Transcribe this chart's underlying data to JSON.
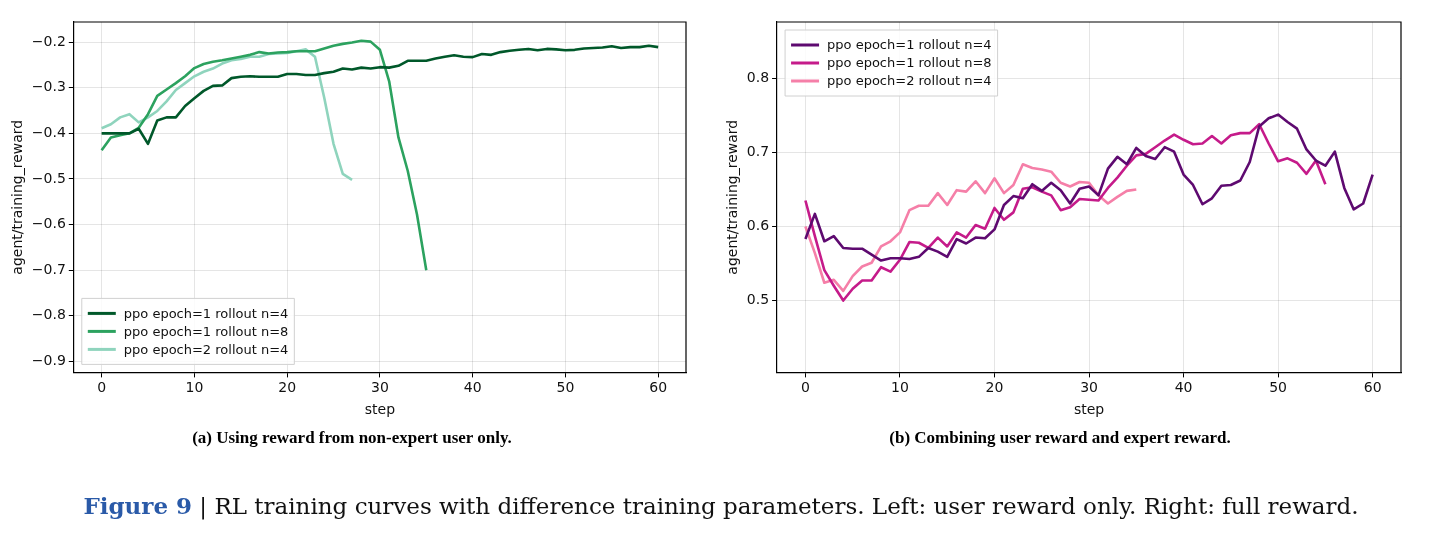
{
  "chart_data": [
    {
      "type": "line",
      "xlabel": "step",
      "ylabel": "agent/training_reward",
      "legend": "bottom left",
      "grid": true,
      "line_style": "solid",
      "annotations": [
        "(a) Using reward from non-expert user only.",
        "Figure 9 | RL training curves with difference training parameters. Left: user reward only. Right: full reward."
      ],
      "xlim": [
        -3,
        63
      ],
      "xticks": [
        0,
        10,
        20,
        30,
        40,
        50,
        60
      ],
      "ylim": [
        -0.924,
        -0.156
      ],
      "yticks": [
        {
          "value": -0.9,
          "label": "−0.9"
        },
        {
          "value": -0.8,
          "label": "−0.8"
        },
        {
          "value": -0.7,
          "label": "−0.7"
        },
        {
          "value": -0.6,
          "label": "−0.6"
        },
        {
          "value": -0.5,
          "label": "−0.5"
        },
        {
          "value": -0.4,
          "label": "−0.4"
        },
        {
          "value": -0.3,
          "label": "−0.3"
        },
        {
          "value": -0.2,
          "label": "−0.2"
        }
      ],
      "series": [
        {
          "name": "ppo epoch=1 rollout n=4",
          "color": "#00582a",
          "x": [
            0,
            1,
            2,
            3,
            4,
            5,
            6,
            7,
            8,
            9,
            10,
            11,
            12,
            13,
            14,
            15,
            16,
            17,
            18,
            19,
            20,
            21,
            22,
            23,
            24,
            25,
            26,
            27,
            28,
            29,
            30,
            31,
            32,
            33,
            34,
            35,
            36,
            37,
            38,
            39,
            40,
            41,
            42,
            43,
            44,
            45,
            46,
            47,
            48,
            49,
            50,
            51,
            52,
            53,
            54,
            55,
            56,
            57,
            58,
            59,
            60
          ],
          "values": [
            -0.4,
            -0.4,
            -0.4,
            -0.4,
            -0.39,
            -0.423,
            -0.372,
            -0.365,
            -0.365,
            -0.34,
            -0.323,
            -0.307,
            -0.296,
            -0.295,
            -0.279,
            -0.276,
            -0.275,
            -0.276,
            -0.276,
            -0.276,
            -0.27,
            -0.27,
            -0.272,
            -0.272,
            -0.268,
            -0.265,
            -0.258,
            -0.26,
            -0.256,
            -0.258,
            -0.255,
            -0.256,
            -0.252,
            -0.241,
            -0.241,
            -0.241,
            -0.236,
            -0.232,
            -0.229,
            -0.232,
            -0.233,
            -0.226,
            -0.228,
            -0.222,
            -0.219,
            -0.217,
            -0.215,
            -0.218,
            -0.215,
            -0.216,
            -0.218,
            -0.217,
            -0.214,
            -0.213,
            -0.212,
            -0.209,
            -0.213,
            -0.211,
            -0.211,
            -0.208,
            -0.211
          ]
        },
        {
          "name": "ppo epoch=1 rollout n=8",
          "color": "#2ca25f",
          "x": [
            0,
            1,
            2,
            3,
            4,
            5,
            6,
            7,
            8,
            9,
            10,
            11,
            12,
            13,
            14,
            15,
            16,
            17,
            18,
            19,
            20,
            21,
            22,
            23,
            24,
            25,
            26,
            27,
            28,
            29,
            30,
            31,
            32,
            33,
            34,
            35
          ],
          "values": [
            -0.437,
            -0.409,
            -0.404,
            -0.4,
            -0.388,
            -0.358,
            -0.318,
            -0.304,
            -0.29,
            -0.275,
            -0.257,
            -0.248,
            -0.243,
            -0.24,
            -0.236,
            -0.232,
            -0.228,
            -0.222,
            -0.225,
            -0.223,
            -0.222,
            -0.22,
            -0.22,
            -0.22,
            -0.214,
            -0.208,
            -0.204,
            -0.201,
            -0.197,
            -0.199,
            -0.217,
            -0.286,
            -0.409,
            -0.482,
            -0.578,
            -0.7
          ]
        },
        {
          "name": "ppo epoch=2 rollout n=4",
          "color": "#8fd4bd",
          "x": [
            0,
            1,
            2,
            3,
            4,
            5,
            6,
            7,
            8,
            9,
            10,
            11,
            12,
            13,
            14,
            15,
            16,
            17,
            18,
            19,
            20,
            21,
            22,
            23,
            24,
            25,
            26,
            27
          ],
          "values": [
            -0.389,
            -0.38,
            -0.365,
            -0.358,
            -0.376,
            -0.365,
            -0.351,
            -0.33,
            -0.305,
            -0.29,
            -0.275,
            -0.265,
            -0.258,
            -0.247,
            -0.24,
            -0.237,
            -0.232,
            -0.232,
            -0.226,
            -0.225,
            -0.224,
            -0.22,
            -0.216,
            -0.232,
            -0.322,
            -0.423,
            -0.489,
            -0.502
          ]
        }
      ]
    },
    {
      "type": "line",
      "xlabel": "step",
      "ylabel": "agent/training_reward",
      "legend": "top left",
      "grid": true,
      "line_style": "solid",
      "annotations": [
        "(b) Combining user reward and expert reward."
      ],
      "xlim": [
        -3,
        63
      ],
      "xticks": [
        0,
        10,
        20,
        30,
        40,
        50,
        60
      ],
      "ylim": [
        0.403,
        0.876
      ],
      "yticks": [
        0.5,
        0.6,
        0.7,
        0.8
      ],
      "series": [
        {
          "name": "ppo epoch=1 rollout n=4",
          "color": "#5e0a70",
          "x": [
            0,
            1,
            2,
            3,
            4,
            5,
            6,
            7,
            8,
            9,
            10,
            11,
            12,
            13,
            14,
            15,
            16,
            17,
            18,
            19,
            20,
            21,
            22,
            23,
            24,
            25,
            26,
            27,
            28,
            29,
            30,
            31,
            32,
            33,
            34,
            35,
            36,
            37,
            38,
            39,
            40,
            41,
            42,
            43,
            44,
            45,
            46,
            47,
            48,
            49,
            50,
            51,
            52,
            53,
            54,
            55,
            56,
            57,
            58,
            59,
            60
          ],
          "values": [
            0.583,
            0.617,
            0.58,
            0.587,
            0.571,
            0.57,
            0.57,
            0.562,
            0.554,
            0.557,
            0.557,
            0.556,
            0.559,
            0.571,
            0.566,
            0.559,
            0.583,
            0.577,
            0.585,
            0.584,
            0.596,
            0.629,
            0.641,
            0.638,
            0.657,
            0.648,
            0.659,
            0.649,
            0.631,
            0.651,
            0.654,
            0.642,
            0.678,
            0.694,
            0.684,
            0.706,
            0.695,
            0.691,
            0.707,
            0.701,
            0.67,
            0.656,
            0.63,
            0.638,
            0.655,
            0.656,
            0.662,
            0.687,
            0.735,
            0.746,
            0.751,
            0.741,
            0.732,
            0.704,
            0.689,
            0.682,
            0.701,
            0.652,
            0.623,
            0.631,
            0.67
          ]
        },
        {
          "name": "ppo epoch=1 rollout n=8",
          "color": "#c51b8a",
          "x": [
            0,
            1,
            2,
            3,
            4,
            5,
            6,
            7,
            8,
            9,
            10,
            11,
            12,
            13,
            14,
            15,
            16,
            17,
            18,
            19,
            20,
            21,
            22,
            23,
            24,
            25,
            26,
            27,
            28,
            29,
            30,
            31,
            32,
            33,
            34,
            35,
            36,
            37,
            38,
            39,
            40,
            41,
            42,
            43,
            44,
            45,
            46,
            47,
            48,
            49,
            50,
            51,
            52,
            53,
            54,
            55
          ],
          "values": [
            0.635,
            0.587,
            0.541,
            0.52,
            0.5,
            0.516,
            0.527,
            0.527,
            0.545,
            0.539,
            0.555,
            0.579,
            0.578,
            0.571,
            0.585,
            0.573,
            0.592,
            0.585,
            0.602,
            0.597,
            0.625,
            0.609,
            0.619,
            0.651,
            0.653,
            0.647,
            0.642,
            0.622,
            0.626,
            0.637,
            0.636,
            0.635,
            0.652,
            0.666,
            0.682,
            0.696,
            0.698,
            0.707,
            0.716,
            0.724,
            0.717,
            0.711,
            0.712,
            0.722,
            0.712,
            0.723,
            0.726,
            0.726,
            0.738,
            0.712,
            0.688,
            0.692,
            0.686,
            0.671,
            0.689,
            0.657
          ]
        },
        {
          "name": "ppo epoch=2 rollout n=4",
          "color": "#f57fa8",
          "x": [
            0,
            1,
            2,
            3,
            4,
            5,
            6,
            7,
            8,
            9,
            10,
            11,
            12,
            13,
            14,
            15,
            16,
            17,
            18,
            19,
            20,
            21,
            22,
            23,
            24,
            25,
            26,
            27,
            28,
            29,
            30,
            31,
            32,
            33,
            34,
            35
          ],
          "values": [
            0.6,
            0.564,
            0.524,
            0.528,
            0.513,
            0.533,
            0.546,
            0.551,
            0.573,
            0.58,
            0.592,
            0.622,
            0.628,
            0.628,
            0.645,
            0.629,
            0.649,
            0.647,
            0.661,
            0.645,
            0.665,
            0.645,
            0.656,
            0.684,
            0.679,
            0.677,
            0.674,
            0.659,
            0.654,
            0.66,
            0.659,
            0.642,
            0.631,
            0.64,
            0.648,
            0.65
          ]
        }
      ]
    }
  ]
}
